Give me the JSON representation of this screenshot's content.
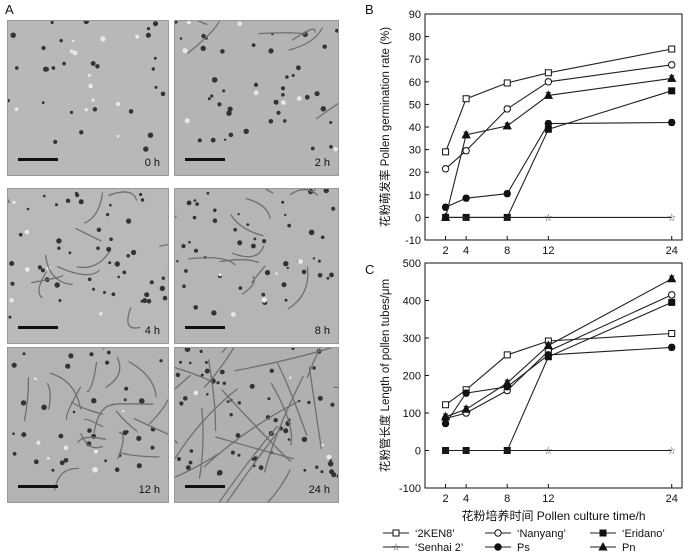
{
  "panels": {
    "a_letter": "A",
    "b_letter": "B",
    "c_letter": "C"
  },
  "micrographs": [
    {
      "time": "0 h",
      "shade": "#b8b8b8"
    },
    {
      "time": "2 h",
      "shade": "#b4b4b4"
    },
    {
      "time": "4 h",
      "shade": "#b9b9b9"
    },
    {
      "time": "8 h",
      "shade": "#b5b5b5"
    },
    {
      "time": "12 h",
      "shade": "#b3b3b3"
    },
    {
      "time": "24 h",
      "shade": "#b0b0b0"
    }
  ],
  "chart_data": [
    {
      "type": "line",
      "title": "",
      "xlabel": "",
      "ylabel": "花粉萌发率 Pollen germination rate (%)",
      "x": [
        2,
        4,
        8,
        12,
        24
      ],
      "xticks": [
        2,
        4,
        8,
        12,
        24
      ],
      "ylim": [
        -10,
        90
      ],
      "yticks": [
        -10,
        0,
        10,
        20,
        30,
        40,
        50,
        60,
        70,
        80,
        90
      ],
      "grid": false,
      "series": [
        {
          "name": "‘2KEN8’",
          "marker": "open-square",
          "values": [
            29,
            52.5,
            59.5,
            64,
            74.5
          ]
        },
        {
          "name": "‘Nanyang’",
          "marker": "open-circle",
          "values": [
            21.5,
            29.5,
            48,
            60,
            67.5
          ]
        },
        {
          "name": "‘Eridano’",
          "marker": "filled-square",
          "values": [
            0,
            0,
            0,
            39,
            56
          ]
        },
        {
          "name": "‘Senhai 2’",
          "marker": "star",
          "values": [
            0,
            0,
            0,
            0,
            0
          ]
        },
        {
          "name": "Ps",
          "marker": "filled-circle",
          "values": [
            4.5,
            8.5,
            10.5,
            41.5,
            42
          ]
        },
        {
          "name": "Pn",
          "marker": "filled-triangle",
          "values": [
            0,
            36.5,
            40.5,
            54,
            61.5
          ]
        }
      ]
    },
    {
      "type": "line",
      "title": "",
      "xlabel": "花粉培养时间 Pollen culture time/h",
      "ylabel": "花粉管长度 Length of pollen tubes/μm",
      "x": [
        2,
        4,
        8,
        12,
        24
      ],
      "xticks": [
        2,
        4,
        8,
        12,
        24
      ],
      "ylim": [
        -100,
        500
      ],
      "yticks": [
        -100,
        0,
        100,
        200,
        300,
        400,
        500
      ],
      "grid": false,
      "legend_position": "bottom",
      "series": [
        {
          "name": "‘2KEN8’",
          "marker": "open-square",
          "values": [
            122,
            162,
            255,
            292,
            312
          ]
        },
        {
          "name": "‘Nanyang’",
          "marker": "open-circle",
          "values": [
            85,
            100,
            160,
            265,
            415
          ]
        },
        {
          "name": "‘Eridano’",
          "marker": "filled-square",
          "values": [
            0,
            0,
            0,
            250,
            395
          ]
        },
        {
          "name": "‘Senhai 2’",
          "marker": "star",
          "values": [
            0,
            0,
            0,
            0,
            0
          ]
        },
        {
          "name": "Ps",
          "marker": "filled-circle",
          "values": [
            72,
            153,
            170,
            255,
            275
          ]
        },
        {
          "name": "Pn",
          "marker": "filled-triangle",
          "values": [
            90,
            110,
            180,
            280,
            458
          ]
        }
      ]
    }
  ]
}
